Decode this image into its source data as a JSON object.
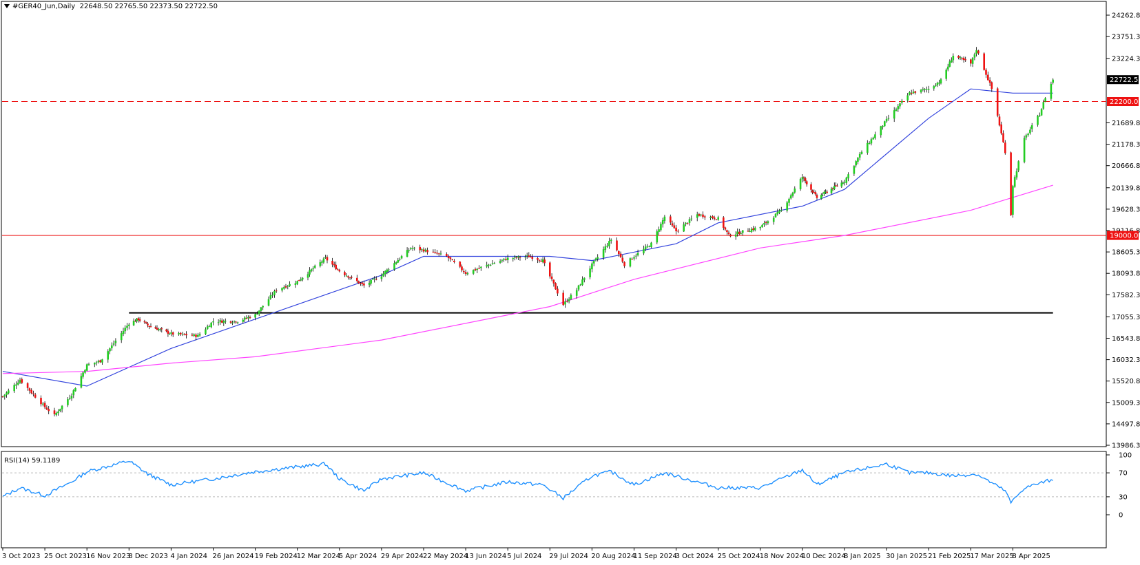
{
  "header": {
    "symbol": "#GER40_Jun,Daily",
    "ohlc": "22648.50 22765.50 22373.50 22722.50"
  },
  "rsi_header": "RSI(14) 59.1189",
  "price_axis": {
    "ticks": [
      "24262.80",
      "23751.30",
      "23224.30",
      "22722.50",
      "22200.00",
      "21689.80",
      "21178.30",
      "20666.80",
      "20139.80",
      "19628.30",
      "19116.80",
      "19000.00",
      "18605.30",
      "18093.80",
      "17582.30",
      "17055.30",
      "16543.80",
      "16032.30",
      "15520.80",
      "15009.30",
      "14497.80",
      "13986.30"
    ],
    "current_price_label": "22722.50",
    "level_labels": [
      "22200.00",
      "19000.00"
    ],
    "range": [
      13986.3,
      24262.8
    ]
  },
  "rsi_axis": {
    "ticks": [
      "100",
      "70",
      "30",
      "0"
    ]
  },
  "date_axis": {
    "labels": [
      "3 Oct 2023",
      "25 Oct 2023",
      "16 Nov 2023",
      "8 Dec 2023",
      "4 Jan 2024",
      "26 Jan 2024",
      "19 Feb 2024",
      "12 Mar 2024",
      "5 Apr 2024",
      "29 Apr 2024",
      "22 May 2024",
      "13 Jun 2024",
      "5 Jul 2024",
      "29 Jul 2024",
      "20 Aug 2024",
      "11 Sep 2024",
      "3 Oct 2024",
      "25 Oct 2024",
      "18 Nov 2024",
      "10 Dec 2024",
      "8 Jan 2025",
      "30 Jan 2025",
      "21 Feb 2025",
      "17 Mar 2025",
      "8 Apr 2025"
    ]
  },
  "colors": {
    "bull": "#22cc22",
    "bear": "#ee1111",
    "ma_fast": "#3344dd",
    "ma_slow": "#ff44ff",
    "level_line": "#ee1111",
    "support_line": "#000000",
    "rsi_line": "#1e90ff"
  },
  "chart_data": {
    "type": "candlestick",
    "symbol": "#GER40_Jun",
    "timeframe": "Daily",
    "ohlc_last": {
      "open": 22648.5,
      "high": 22765.5,
      "low": 22373.5,
      "close": 22722.5
    },
    "close_path": [
      [
        "3 Oct 2023",
        15150
      ],
      [
        "12 Oct 2023",
        15550
      ],
      [
        "25 Oct 2023",
        14900
      ],
      [
        "30 Oct 2023",
        14700
      ],
      [
        "8 Nov 2023",
        15200
      ],
      [
        "16 Nov 2023",
        15900
      ],
      [
        "23 Nov 2023",
        16000
      ],
      [
        "8 Dec 2023",
        16900
      ],
      [
        "14 Dec 2023",
        17000
      ],
      [
        "20 Dec 2023",
        16850
      ],
      [
        "4 Jan 2024",
        16650
      ],
      [
        "18 Jan 2024",
        16600
      ],
      [
        "26 Jan 2024",
        16950
      ],
      [
        "9 Feb 2024",
        16950
      ],
      [
        "19 Feb 2024",
        17100
      ],
      [
        "1 Mar 2024",
        17700
      ],
      [
        "12 Mar 2024",
        17900
      ],
      [
        "28 Mar 2024",
        18450
      ],
      [
        "5 Apr 2024",
        18150
      ],
      [
        "19 Apr 2024",
        17800
      ],
      [
        "29 Apr 2024",
        18050
      ],
      [
        "15 May 2024",
        18700
      ],
      [
        "22 May 2024",
        18650
      ],
      [
        "3 Jun 2024",
        18500
      ],
      [
        "13 Jun 2024",
        18100
      ],
      [
        "25 Jun 2024",
        18300
      ],
      [
        "5 Jul 2024",
        18450
      ],
      [
        "17 Jul 2024",
        18500
      ],
      [
        "25 Jul 2024",
        18400
      ],
      [
        "5 Aug 2024",
        17350
      ],
      [
        "12 Aug 2024",
        17700
      ],
      [
        "20 Aug 2024",
        18300
      ],
      [
        "30 Aug 2024",
        18900
      ],
      [
        "6 Sep 2024",
        18300
      ],
      [
        "11 Sep 2024",
        18500
      ],
      [
        "20 Sep 2024",
        18800
      ],
      [
        "27 Sep 2024",
        19450
      ],
      [
        "3 Oct 2024",
        19100
      ],
      [
        "14 Oct 2024",
        19500
      ],
      [
        "25 Oct 2024",
        19400
      ],
      [
        "31 Oct 2024",
        19000
      ],
      [
        "18 Nov 2024",
        19200
      ],
      [
        "29 Nov 2024",
        19600
      ],
      [
        "10 Dec 2024",
        20400
      ],
      [
        "20 Dec 2024",
        19900
      ],
      [
        "8 Jan 2025",
        20300
      ],
      [
        "17 Jan 2025",
        21000
      ],
      [
        "30 Jan 2025",
        21750
      ],
      [
        "11 Feb 2025",
        22400
      ],
      [
        "21 Feb 2025",
        22500
      ],
      [
        "28 Feb 2025",
        22700
      ],
      [
        "7 Mar 2025",
        23300
      ],
      [
        "17 Mar 2025",
        23100
      ],
      [
        "20 Mar 2025",
        23450
      ],
      [
        "28 Mar 2025",
        22500
      ],
      [
        "4 Apr 2025",
        21000
      ],
      [
        "7 Apr 2025",
        19500
      ],
      [
        "8 Apr 2025",
        20200
      ],
      [
        "14 Apr 2025",
        21300
      ],
      [
        "22 Apr 2025",
        21900
      ],
      [
        "25 Apr 2025",
        22300
      ],
      [
        "29 Apr 2025",
        22722.5
      ]
    ],
    "moving_averages": [
      {
        "color": "#3344dd",
        "path": [
          [
            "3 Oct 2023",
            15750
          ],
          [
            "16 Nov 2023",
            15400
          ],
          [
            "4 Jan 2024",
            16300
          ],
          [
            "19 Feb 2024",
            17000
          ],
          [
            "29 Apr 2024",
            18050
          ],
          [
            "22 May 2024",
            18500
          ],
          [
            "5 Jul 2024",
            18500
          ],
          [
            "29 Jul 2024",
            18500
          ],
          [
            "20 Aug 2024",
            18400
          ],
          [
            "3 Oct 2024",
            18800
          ],
          [
            "25 Oct 2024",
            19300
          ],
          [
            "10 Dec 2024",
            19700
          ],
          [
            "8 Jan 2025",
            20100
          ],
          [
            "21 Feb 2025",
            21800
          ],
          [
            "17 Mar 2025",
            22500
          ],
          [
            "8 Apr 2025",
            22400
          ],
          [
            "29 Apr 2025",
            22400
          ]
        ]
      },
      {
        "color": "#ff44ff",
        "path": [
          [
            "3 Oct 2023",
            15700
          ],
          [
            "16 Nov 2023",
            15750
          ],
          [
            "4 Jan 2024",
            15950
          ],
          [
            "19 Feb 2024",
            16100
          ],
          [
            "29 Apr 2024",
            16500
          ],
          [
            "5 Jul 2024",
            17100
          ],
          [
            "29 Jul 2024",
            17300
          ],
          [
            "11 Sep 2024",
            17950
          ],
          [
            "18 Nov 2024",
            18700
          ],
          [
            "8 Jan 2025",
            19000
          ],
          [
            "17 Mar 2025",
            19600
          ],
          [
            "29 Apr 2025",
            20200
          ]
        ]
      }
    ],
    "horizontal_levels": [
      22200,
      19000
    ],
    "support_line": {
      "value": 17150,
      "from": "8 Dec 2023",
      "to": "29 Apr 2025"
    },
    "rsi": {
      "period": 14,
      "last": 59.1189,
      "levels": [
        70,
        30
      ],
      "ylim": [
        0,
        100
      ],
      "path": [
        [
          "3 Oct 2023",
          30
        ],
        [
          "12 Oct 2023",
          45
        ],
        [
          "25 Oct 2023",
          32
        ],
        [
          "8 Nov 2023",
          55
        ],
        [
          "16 Nov 2023",
          72
        ],
        [
          "8 Dec 2023",
          90
        ],
        [
          "20 Dec 2023",
          68
        ],
        [
          "4 Jan 2024",
          50
        ],
        [
          "26 Jan 2024",
          60
        ],
        [
          "19 Feb 2024",
          72
        ],
        [
          "12 Mar 2024",
          80
        ],
        [
          "28 Mar 2024",
          85
        ],
        [
          "5 Apr 2024",
          60
        ],
        [
          "19 Apr 2024",
          40
        ],
        [
          "29 Apr 2024",
          60
        ],
        [
          "22 May 2024",
          70
        ],
        [
          "13 Jun 2024",
          40
        ],
        [
          "5 Jul 2024",
          55
        ],
        [
          "25 Jul 2024",
          50
        ],
        [
          "5 Aug 2024",
          28
        ],
        [
          "20 Aug 2024",
          65
        ],
        [
          "30 Aug 2024",
          72
        ],
        [
          "11 Sep 2024",
          50
        ],
        [
          "27 Sep 2024",
          70
        ],
        [
          "25 Oct 2024",
          45
        ],
        [
          "18 Nov 2024",
          45
        ],
        [
          "10 Dec 2024",
          75
        ],
        [
          "20 Dec 2024",
          50
        ],
        [
          "8 Jan 2025",
          70
        ],
        [
          "30 Jan 2025",
          85
        ],
        [
          "11 Feb 2025",
          70
        ],
        [
          "21 Feb 2025",
          70
        ],
        [
          "7 Mar 2025",
          65
        ],
        [
          "20 Mar 2025",
          68
        ],
        [
          "4 Apr 2025",
          40
        ],
        [
          "7 Apr 2025",
          20
        ],
        [
          "14 Apr 2025",
          45
        ],
        [
          "29 Apr 2025",
          59.12
        ]
      ]
    }
  }
}
